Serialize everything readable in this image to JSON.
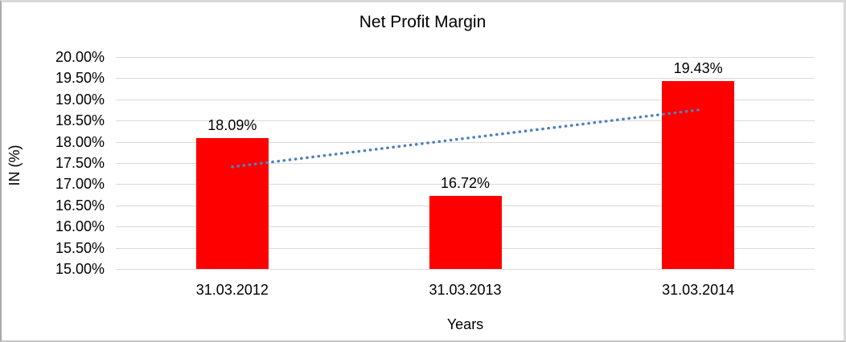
{
  "chart_data": {
    "type": "bar",
    "title": "Net Profit Margin",
    "xlabel": "Years",
    "ylabel": "IN (%)",
    "categories": [
      "31.03.2012",
      "31.03.2013",
      "31.03.2014"
    ],
    "values": [
      18.09,
      16.72,
      19.43
    ],
    "value_labels": [
      "18.09%",
      "16.72%",
      "19.43%"
    ],
    "ylim": [
      15,
      20
    ],
    "ytick_step": 0.5,
    "ytick_labels": [
      "20.00%",
      "19.50%",
      "19.00%",
      "18.50%",
      "18.00%",
      "17.50%",
      "17.00%",
      "16.50%",
      "16.00%",
      "15.50%",
      "15.00%"
    ],
    "grid": true,
    "legend": "none",
    "bar_color": "#ff0000",
    "gridline_color": "#d9d9d9",
    "trendline": {
      "type": "linear",
      "style": "dotted",
      "color": "#4e81bd",
      "endpoints": [
        17.41,
        18.75
      ]
    }
  }
}
